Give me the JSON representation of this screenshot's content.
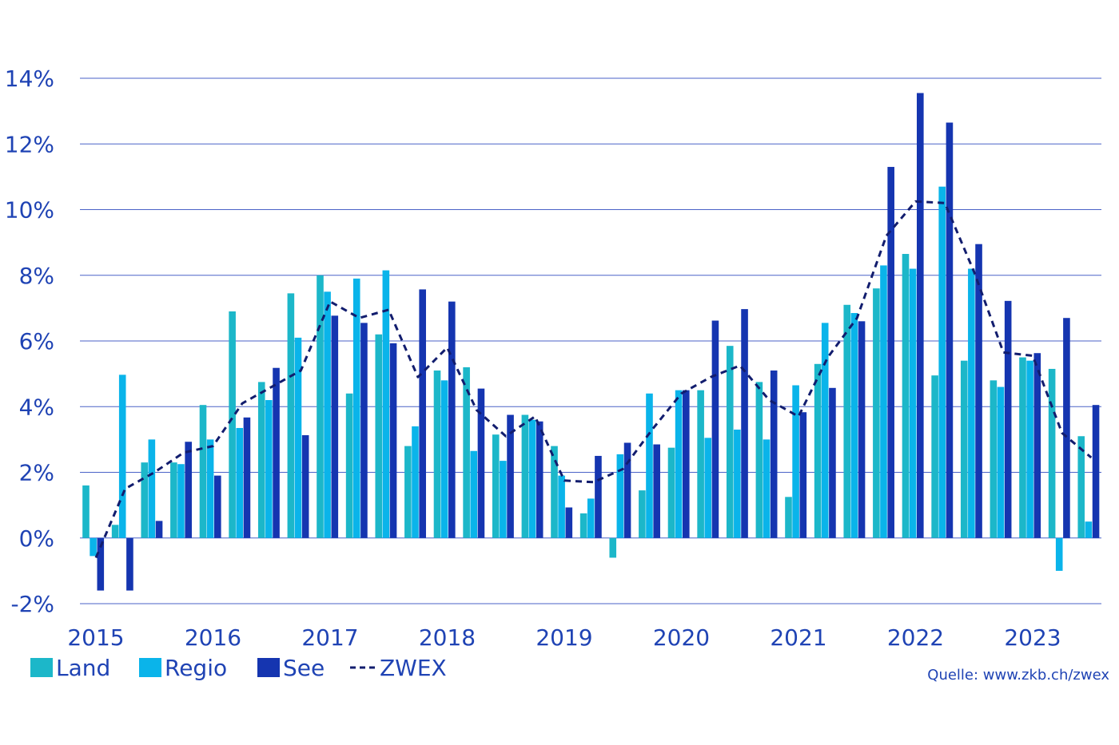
{
  "chart_data": {
    "type": "bar",
    "title": "",
    "xlabel": "",
    "ylabel": "",
    "ylim": [
      -2,
      14
    ],
    "grid": true,
    "yticks": [
      "-2%",
      "0%",
      "2%",
      "4%",
      "6%",
      "8%",
      "10%",
      "12%",
      "14%"
    ],
    "ytick_values": [
      -2,
      0,
      2,
      4,
      6,
      8,
      10,
      12,
      14
    ],
    "year_labels": [
      "2015",
      "2016",
      "2017",
      "2018",
      "2019",
      "2020",
      "2021",
      "2022",
      "2023"
    ],
    "x_start": 2015.0,
    "x_step": 0.25,
    "x": [
      "2015Q1",
      "2015Q2",
      "2015Q3",
      "2015Q4",
      "2016Q1",
      "2016Q2",
      "2016Q3",
      "2016Q4",
      "2017Q1",
      "2017Q2",
      "2017Q3",
      "2017Q4",
      "2018Q1",
      "2018Q2",
      "2018Q3",
      "2018Q4",
      "2019Q1",
      "2019Q2",
      "2019Q3",
      "2019Q4",
      "2020Q1",
      "2020Q2",
      "2020Q3",
      "2020Q4",
      "2021Q1",
      "2021Q2",
      "2021Q3",
      "2021Q4",
      "2022Q1",
      "2022Q2",
      "2022Q3",
      "2022Q4",
      "2023Q1",
      "2023Q2",
      "2023Q3"
    ],
    "series": [
      {
        "name": "Land",
        "type": "bar",
        "color": "#1cb7c9",
        "values": [
          1.6,
          0.4,
          2.3,
          2.3,
          4.05,
          6.9,
          4.75,
          7.45,
          8.0,
          4.4,
          6.2,
          2.8,
          5.1,
          5.2,
          3.15,
          3.75,
          2.8,
          0.75,
          -0.6,
          1.45,
          2.75,
          4.5,
          5.85,
          4.75,
          1.25,
          5.3,
          7.1,
          7.6,
          8.65,
          4.95,
          5.4,
          4.8,
          5.5,
          5.15,
          3.1
        ]
      },
      {
        "name": "Regio",
        "type": "bar",
        "color": "#0ab4ea",
        "values": [
          -0.55,
          4.97,
          3.0,
          2.25,
          3.0,
          3.35,
          4.2,
          6.1,
          7.5,
          7.9,
          8.15,
          3.4,
          4.8,
          2.65,
          2.35,
          3.6,
          1.9,
          1.2,
          2.55,
          4.4,
          4.5,
          3.05,
          3.3,
          3.0,
          4.65,
          6.55,
          6.85,
          8.3,
          8.2,
          10.7,
          8.2,
          4.6,
          5.4,
          -1.0,
          0.5
        ]
      },
      {
        "name": "See",
        "type": "bar",
        "color": "#1535b0",
        "values": [
          -1.6,
          -1.6,
          0.52,
          2.93,
          1.9,
          3.67,
          5.18,
          3.13,
          6.77,
          6.55,
          5.93,
          7.57,
          7.2,
          4.55,
          3.75,
          3.55,
          0.93,
          2.5,
          2.9,
          2.85,
          4.5,
          6.62,
          6.97,
          5.1,
          3.83,
          4.57,
          6.6,
          11.3,
          13.55,
          12.65,
          8.95,
          7.22,
          5.63,
          6.7,
          4.05
        ]
      },
      {
        "name": "ZWEX",
        "type": "line",
        "color": "#121d6e",
        "values": [
          -0.6,
          1.5,
          2.0,
          2.6,
          2.8,
          4.1,
          4.6,
          5.1,
          7.2,
          6.7,
          6.95,
          4.9,
          5.8,
          3.9,
          3.1,
          3.7,
          1.75,
          1.7,
          2.1,
          3.3,
          4.4,
          4.9,
          5.25,
          4.2,
          3.7,
          5.5,
          6.7,
          9.2,
          10.25,
          10.2,
          8.1,
          5.65,
          5.55,
          3.2,
          2.45
        ]
      }
    ],
    "legend": {
      "position": "bottom-left",
      "entries": [
        "Land",
        "Regio",
        "See",
        "ZWEX"
      ]
    },
    "source": "Quelle: www.zkb.ch/zwex"
  },
  "colors": {
    "axis_text": "#1f43b4",
    "grid": "#4a62c7"
  }
}
